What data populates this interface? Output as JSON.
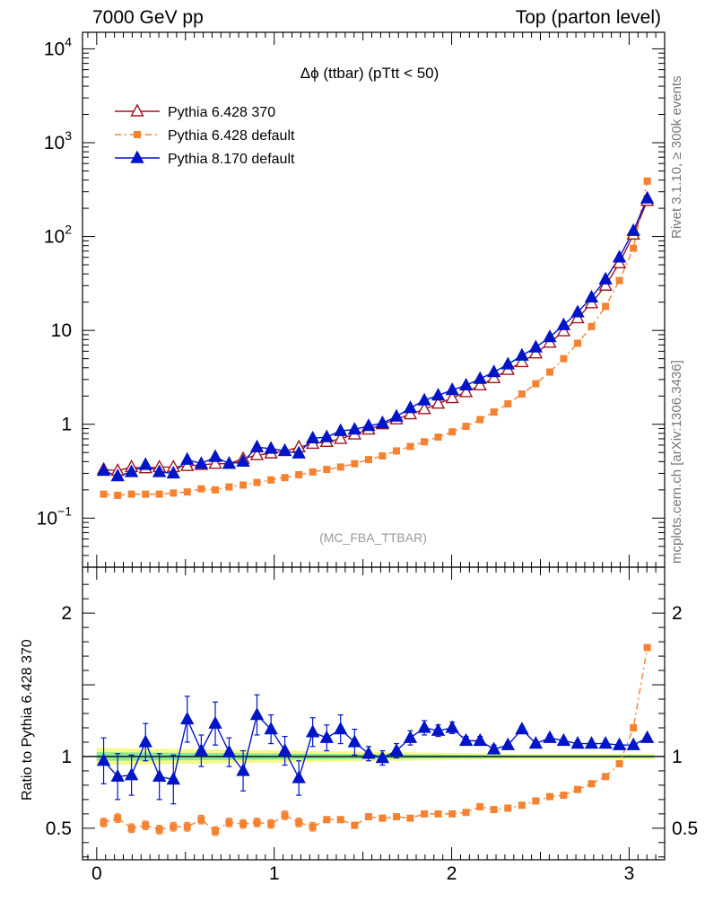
{
  "header": {
    "left": "7000 GeV pp",
    "right": "Top (parton level)"
  },
  "side_labels": {
    "rivet": "Rivet 3.1.10, ≥ 300k events",
    "mcplots": "mcplots.cern.ch [arXiv:1306.3436]"
  },
  "chart_data": [
    {
      "type": "line",
      "title": "Δϕ (ttbar) (pTtt < 50)",
      "watermark": "(MC_FBA_TTBAR)",
      "yscale": "log",
      "xlim": [
        -0.08,
        3.2
      ],
      "ylim": [
        0.03,
        15000
      ],
      "y_ticks": [
        {
          "v": 0.1,
          "b": "10",
          "e": "−1"
        },
        {
          "v": 1,
          "b": "1",
          "e": ""
        },
        {
          "v": 10,
          "b": "10",
          "e": ""
        },
        {
          "v": 100,
          "b": "10",
          "e": "2"
        },
        {
          "v": 1000,
          "b": "10",
          "e": "3"
        },
        {
          "v": 10000,
          "b": "10",
          "e": "4"
        }
      ],
      "legend_position": "top-left",
      "x": [
        0.039,
        0.118,
        0.196,
        0.275,
        0.353,
        0.432,
        0.51,
        0.589,
        0.668,
        0.746,
        0.825,
        0.903,
        0.982,
        1.06,
        1.139,
        1.217,
        1.296,
        1.374,
        1.453,
        1.532,
        1.61,
        1.689,
        1.767,
        1.846,
        1.924,
        2.003,
        2.081,
        2.16,
        2.238,
        2.317,
        2.396,
        2.474,
        2.553,
        2.631,
        2.71,
        2.788,
        2.867,
        2.945,
        3.024,
        3.102
      ],
      "series": [
        {
          "name": "Pythia 6.428 370",
          "color": "#a0141e",
          "marker": "open-triangle",
          "line": "solid",
          "values": [
            0.33,
            0.32,
            0.35,
            0.34,
            0.35,
            0.35,
            0.36,
            0.37,
            0.38,
            0.38,
            0.43,
            0.47,
            0.49,
            0.52,
            0.57,
            0.62,
            0.65,
            0.7,
            0.78,
            0.88,
            1.0,
            1.13,
            1.28,
            1.45,
            1.66,
            1.9,
            2.2,
            2.6,
            3.1,
            3.8,
            4.6,
            5.7,
            7.4,
            9.8,
            13.5,
            19.5,
            30,
            52,
            105,
            240
          ]
        },
        {
          "name": "Pythia 6.428 default",
          "color": "#f58231",
          "marker": "filled-square",
          "line": "dashdot",
          "values": [
            0.18,
            0.175,
            0.18,
            0.18,
            0.18,
            0.185,
            0.19,
            0.205,
            0.2,
            0.215,
            0.225,
            0.24,
            0.255,
            0.27,
            0.29,
            0.31,
            0.33,
            0.35,
            0.38,
            0.42,
            0.46,
            0.52,
            0.58,
            0.65,
            0.73,
            0.83,
            0.95,
            1.12,
            1.35,
            1.65,
            2.1,
            2.7,
            3.6,
            5.0,
            7.3,
            11.0,
            18.0,
            34,
            75,
            390
          ]
        },
        {
          "name": "Pythia 8.170 default",
          "color": "#0014c8",
          "marker": "filled-triangle",
          "line": "solid",
          "values": [
            0.32,
            0.28,
            0.31,
            0.37,
            0.31,
            0.3,
            0.42,
            0.38,
            0.45,
            0.38,
            0.4,
            0.57,
            0.55,
            0.52,
            0.49,
            0.71,
            0.73,
            0.85,
            0.88,
            0.96,
            1.03,
            1.21,
            1.49,
            1.8,
            2.03,
            2.32,
            2.6,
            3.05,
            3.6,
            4.35,
            5.4,
            6.6,
            8.5,
            11.4,
            15.6,
            22.5,
            35,
            60,
            115,
            255
          ]
        }
      ]
    },
    {
      "type": "line",
      "ylabel": "Ratio to Pythia 6.428 370",
      "xlim": [
        -0.08,
        3.2
      ],
      "ylim": [
        0.28,
        2.32
      ],
      "x_ticks": [
        0,
        1,
        2,
        3
      ],
      "y_ticks": [
        0.5,
        1,
        2
      ],
      "reference_line": 1,
      "x": [
        0.039,
        0.118,
        0.196,
        0.275,
        0.353,
        0.432,
        0.51,
        0.589,
        0.668,
        0.746,
        0.825,
        0.903,
        0.982,
        1.06,
        1.139,
        1.217,
        1.296,
        1.374,
        1.453,
        1.532,
        1.61,
        1.689,
        1.767,
        1.846,
        1.924,
        2.003,
        2.081,
        2.16,
        2.238,
        2.317,
        2.396,
        2.474,
        2.553,
        2.631,
        2.71,
        2.788,
        2.867,
        2.945,
        3.024,
        3.102
      ],
      "series": [
        {
          "name": "Pythia 6.428 default",
          "color": "#f58231",
          "values": [
            0.54,
            0.57,
            0.5,
            0.52,
            0.49,
            0.51,
            0.51,
            0.56,
            0.48,
            0.54,
            0.53,
            0.54,
            0.53,
            0.59,
            0.54,
            0.51,
            0.56,
            0.56,
            0.52,
            0.58,
            0.57,
            0.58,
            0.57,
            0.6,
            0.6,
            0.6,
            0.61,
            0.65,
            0.63,
            0.64,
            0.66,
            0.69,
            0.72,
            0.73,
            0.77,
            0.81,
            0.86,
            0.95,
            1.2,
            1.76
          ],
          "errors": [
            0.03,
            0.03,
            0.03,
            0.03,
            0.03,
            0.03,
            0.03,
            0.03,
            0.03,
            0.03,
            0.03,
            0.03,
            0.03,
            0.03,
            0.03,
            0.03,
            0.02,
            0.02,
            0.02,
            0.02,
            0.02,
            0.01,
            0.01,
            0.01,
            0.01,
            0.01,
            0.01,
            0.01,
            0.01,
            0.01,
            0.01,
            0.01,
            0.01,
            0.01,
            0.01,
            0.01,
            0.01,
            0.01,
            0.01,
            0.01
          ]
        },
        {
          "name": "Pythia 8.170 default",
          "color": "#0014c8",
          "values": [
            0.97,
            0.86,
            0.87,
            1.1,
            0.86,
            0.84,
            1.26,
            1.04,
            1.23,
            1.03,
            0.9,
            1.29,
            1.19,
            1.04,
            0.85,
            1.17,
            1.13,
            1.19,
            1.1,
            1.02,
            0.99,
            1.04,
            1.13,
            1.2,
            1.18,
            1.2,
            1.11,
            1.11,
            1.05,
            1.08,
            1.19,
            1.09,
            1.13,
            1.11,
            1.09,
            1.09,
            1.09,
            1.08,
            1.08,
            1.13
          ]
        }
      ],
      "band": {
        "inner": 0.03,
        "outer": 0.06
      }
    }
  ]
}
